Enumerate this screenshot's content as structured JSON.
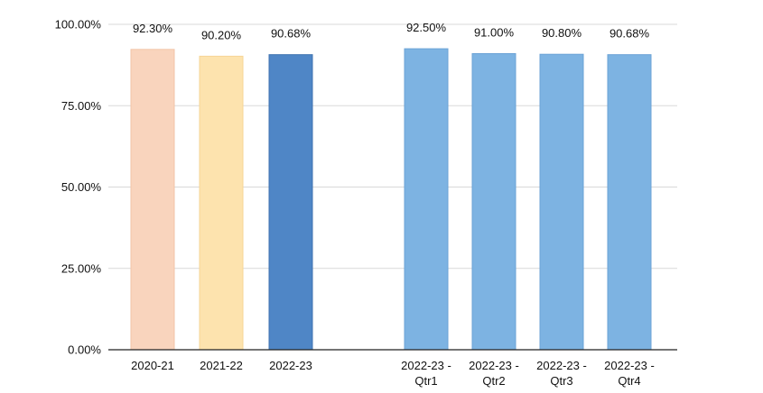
{
  "chart_data": {
    "type": "bar",
    "title": "",
    "xlabel": "",
    "ylabel": "",
    "ylim": [
      0,
      100
    ],
    "yticks": [
      0,
      25,
      50,
      75,
      100
    ],
    "ytick_labels": [
      "0.00%",
      "25.00%",
      "50.00%",
      "75.00%",
      "100.00%"
    ],
    "grid": true,
    "legend": "none",
    "categories": [
      [
        "2020-21"
      ],
      [
        "2021-22"
      ],
      [
        "2022-23"
      ],
      [
        "2022-23 -",
        "Qtr1"
      ],
      [
        "2022-23 -",
        "Qtr2"
      ],
      [
        "2022-23 -",
        "Qtr3"
      ],
      [
        "2022-23 -",
        "Qtr4"
      ]
    ],
    "values": [
      92.3,
      90.2,
      90.68,
      92.5,
      91.0,
      90.8,
      90.68
    ],
    "value_labels": [
      "92.30%",
      "90.20%",
      "90.68%",
      "92.50%",
      "91.00%",
      "90.80%",
      "90.68%"
    ],
    "colors": [
      "#f9d4bd",
      "#fde3ae",
      "#4f86c6",
      "#7db3e2",
      "#7db3e2",
      "#7db3e2",
      "#7db3e2"
    ],
    "edge_colors": [
      "#f2c4a8",
      "#f6d596",
      "#3f73b0",
      "#6ca3d6",
      "#6ca3d6",
      "#6ca3d6",
      "#6ca3d6"
    ]
  }
}
